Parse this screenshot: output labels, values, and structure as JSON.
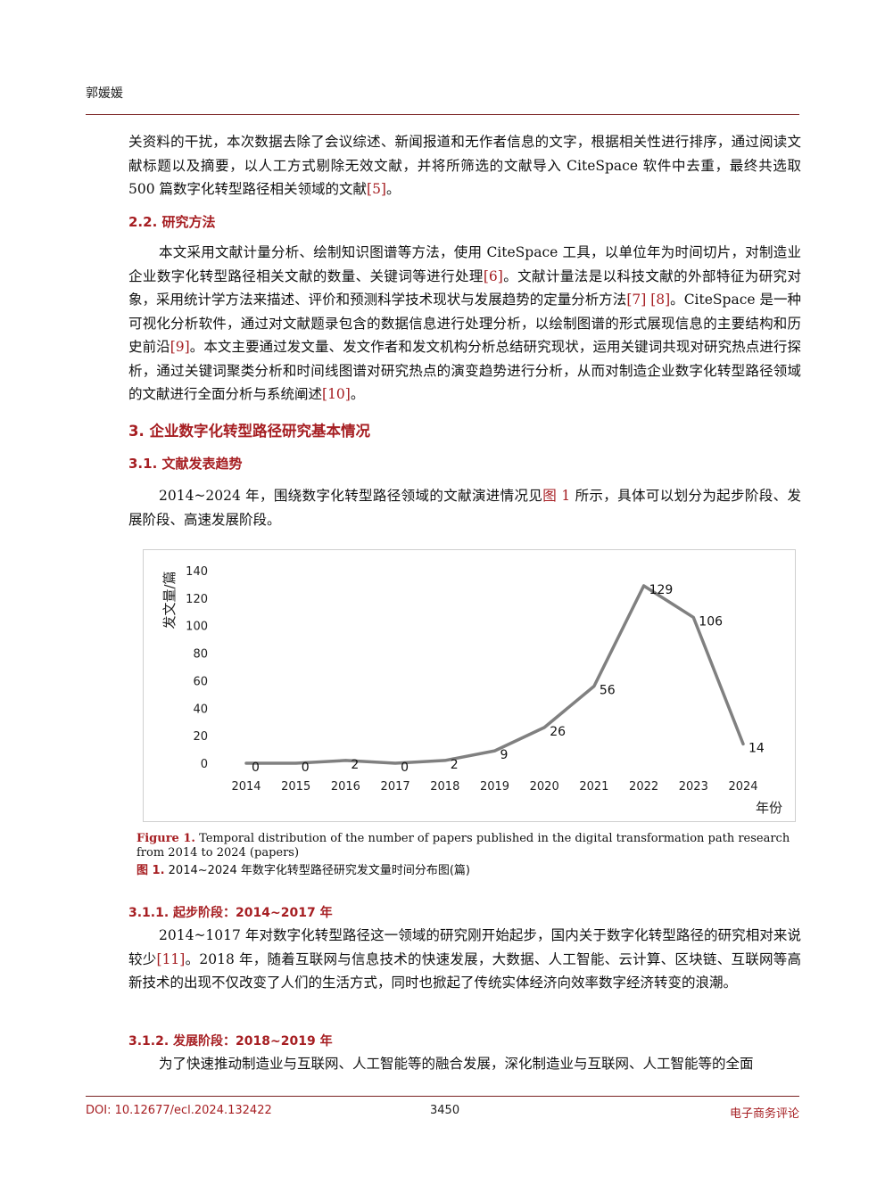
{
  "header": {
    "author": "郭媛媛"
  },
  "intro_paragraph": {
    "text": "关资料的干扰，本次数据去除了会议综述、新闻报道和无作者信息的文字，根据相关性进行排序，通过阅读文献标题以及摘要，以人工方式剔除无效文献，并将所筛选的文献导入 CiteSpace 软件中去重，最终共选取 500 篇数字化转型路径相关领域的文献",
    "ref": "[5]",
    "end": "。"
  },
  "section_2_2": {
    "heading": "2.2.  研究方法",
    "p1": "本文采用文献计量分析、绘制知识图谱等方法，使用 CiteSpace 工具，以单位年为时间切片，对制造业企业数字化转型路径相关文献的数量、关键词等进行处理",
    "ref1": "[6]",
    "p2": "。文献计量法是以科技文献的外部特征为研究对象，采用统计学方法来描述、评价和预测科学技术现状与发展趋势的定量分析方法",
    "ref2": "[7] [8]",
    "p3": "。CiteSpace 是一种可视化分析软件，通过对文献题录包含的数据信息进行处理分析，以绘制图谱的形式展现信息的主要结构和历史前沿",
    "ref3": "[9]",
    "p4": "。本文主要通过发文量、发文作者和发文机构分析总结研究现状，运用关键词共现对研究热点进行探析，通过关键词聚类分析和时间线图谱对研究热点的演变趋势进行分析，从而对制造企业数字化转型路径领域的文献进行全面分析与系统阐述",
    "ref4": "[10]",
    "p5": "。"
  },
  "section_3": {
    "heading": "3.  企业数字化转型路径研究基本情况"
  },
  "section_3_1": {
    "heading": "3.1.  文献发表趋势",
    "p1": "2014~2024 年，围绕数字化转型路径领域的文献演进情况见",
    "fig_ref": "图 1",
    "p2": " 所示，具体可以划分为起步阶段、发展阶段、高速发展阶段。"
  },
  "chart_data": {
    "type": "line",
    "x": [
      "2014",
      "2015",
      "2016",
      "2017",
      "2018",
      "2019",
      "2020",
      "2021",
      "2022",
      "2023",
      "2024"
    ],
    "values": [
      0,
      0,
      2,
      0,
      2,
      9,
      26,
      56,
      129,
      106,
      14
    ],
    "data_labels": [
      "0",
      "0",
      "2",
      "0",
      "2",
      "9",
      "26",
      "56",
      "129",
      "106",
      "14"
    ],
    "yticks": [
      "0",
      "20",
      "40",
      "60",
      "80",
      "100",
      "120",
      "140"
    ],
    "ylim": [
      0,
      140
    ],
    "ylabel": "发文量/篇",
    "xlabel": "年份",
    "line_color": "#808080",
    "grid": false
  },
  "figure_caption": {
    "en_label": "Figure 1.",
    "en_text": " Temporal distribution of the number of papers published in the digital transformation path research from 2014 to 2024 (papers)",
    "zh_label": "图 1.",
    "zh_text": " 2014~2024 年数字化转型路径研究发文量时间分布图(篇)"
  },
  "section_3_1_1": {
    "heading": "3.1.1.  起步阶段：2014~2017 年",
    "p1": "2014~1017 年对数字化转型路径这一领域的研究刚开始起步，国内关于数字化转型路径的研究相对来说较少",
    "ref1": "[11]",
    "p2": "。2018 年，随着互联网与信息技术的快速发展，大数据、人工智能、云计算、区块链、互联网等高新技术的出现不仅改变了人们的生活方式，同时也掀起了传统实体经济向效率数字经济转变的浪潮。"
  },
  "section_3_1_2": {
    "heading": "3.1.2.  发展阶段：2018~2019 年",
    "p1": "为了快速推动制造业与互联网、人工智能等的融合发展，深化制造业与互联网、人工智能等的全面"
  },
  "footer": {
    "doi": "DOI: 10.12677/ecl.2024.132422",
    "page": "3450",
    "journal": "电子商务评论",
    "accent_color": "#a61e22"
  }
}
